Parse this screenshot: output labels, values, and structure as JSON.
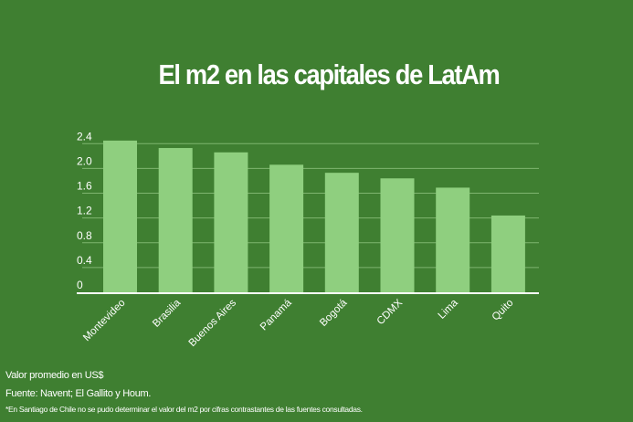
{
  "chart_data": {
    "type": "bar",
    "title": "El m2 en las capitales de LatAm",
    "categories": [
      "Montevideo",
      "Brasilia",
      "Buenos Aires",
      "Panamá",
      "Bogotá",
      "CDMX",
      "Lima",
      "Quito"
    ],
    "values": [
      2.45,
      2.33,
      2.26,
      2.06,
      1.93,
      1.84,
      1.69,
      1.24
    ],
    "yticks": [
      "0",
      "0.4",
      "0.8",
      "1.2",
      "1.6",
      "2.0",
      "2.4"
    ],
    "ylim": [
      0,
      2.4
    ],
    "xlabel": "",
    "ylabel": "",
    "grid": true,
    "colors": {
      "background": "#3f7f31",
      "bar": "#8fcf7f",
      "grid": "#7fb56f"
    }
  },
  "footer": {
    "unit": "Valor promedio en US$",
    "source": "Fuente: Navent; El Gallito y Houm.",
    "note": "*En Santiago de Chile no se pudo determinar el valor del m2 por cifras contrastantes de las fuentes consultadas."
  }
}
